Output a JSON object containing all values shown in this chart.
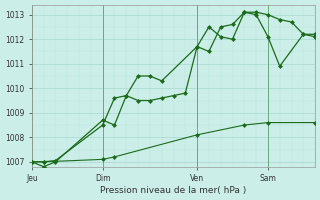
{
  "xlabel": "Pression niveau de la mer( hPa )",
  "ylim": [
    1006.8,
    1013.4
  ],
  "yticks": [
    1007,
    1008,
    1009,
    1010,
    1011,
    1012,
    1013
  ],
  "bg_color": "#cceee8",
  "grid_color_major": "#a8d8d0",
  "grid_color_minor": "#b8e4dc",
  "line_color": "#1a6b1a",
  "xtick_labels": [
    "Jeu",
    "Dim",
    "Ven",
    "Sam"
  ],
  "xtick_positions": [
    0,
    24,
    56,
    80
  ],
  "xlim": [
    0,
    96
  ],
  "line1_x": [
    0,
    4,
    8,
    24,
    28,
    32,
    36,
    40,
    44,
    56,
    60,
    64,
    68,
    72,
    76,
    80,
    84,
    88,
    92,
    96
  ],
  "line1_y": [
    1007.0,
    1006.8,
    1007.0,
    1008.7,
    1008.5,
    1009.7,
    1010.5,
    1010.5,
    1010.3,
    1011.7,
    1011.5,
    1012.5,
    1012.6,
    1013.1,
    1013.1,
    1013.0,
    1012.8,
    1012.7,
    1012.2,
    1012.1
  ],
  "line2_x": [
    0,
    4,
    8,
    24,
    28,
    32,
    36,
    40,
    44,
    48,
    52,
    56,
    60,
    64,
    68,
    72,
    76,
    80,
    84,
    92,
    96
  ],
  "line2_y": [
    1007.0,
    1007.0,
    1007.05,
    1008.5,
    1009.6,
    1009.7,
    1009.5,
    1009.5,
    1009.6,
    1009.7,
    1009.8,
    1011.7,
    1012.5,
    1012.1,
    1012.0,
    1013.1,
    1013.0,
    1012.1,
    1010.9,
    1012.2,
    1012.2
  ],
  "line3_x": [
    0,
    4,
    24,
    28,
    56,
    72,
    80,
    96
  ],
  "line3_y": [
    1007.0,
    1007.0,
    1007.1,
    1007.2,
    1008.1,
    1008.5,
    1008.6,
    1008.6
  ],
  "vline_x": [
    0,
    24,
    56,
    80
  ],
  "markersize": 2.5
}
